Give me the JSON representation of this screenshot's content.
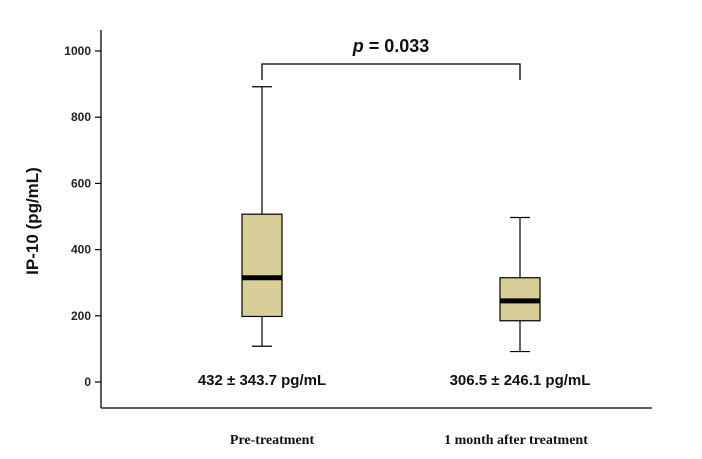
{
  "chart_data": {
    "type": "box",
    "ylabel": "IP-10 (pg/mL)",
    "ylim": [
      -80,
      1080
    ],
    "yticks": [
      0,
      200,
      400,
      600,
      800,
      1000
    ],
    "categories": [
      "Pre-treatment",
      "1 month  after treatment"
    ],
    "boxes": [
      {
        "category": "Pre-treatment",
        "whisker_low": 108,
        "q1": 198,
        "median": 315,
        "q3": 507,
        "whisker_high": 892,
        "stat_label": "432 ± 343.7 pg/mL"
      },
      {
        "category": "1 month  after treatment",
        "whisker_low": 92,
        "q1": 185,
        "median": 245,
        "q3": 315,
        "whisker_high": 497,
        "stat_label": "306.5 ± 246.1 pg/mL"
      }
    ],
    "annotation": {
      "p_symbol": "p",
      "p_text": " = 0.033"
    },
    "box_fill": "#d8cf98",
    "median_color": "#000000"
  }
}
